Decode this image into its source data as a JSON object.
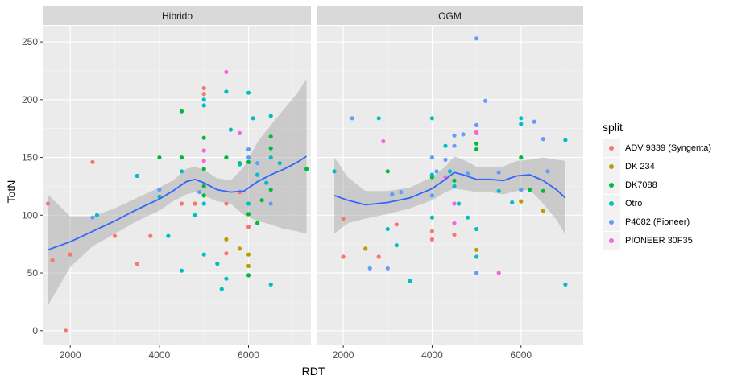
{
  "chart_data": {
    "type": "scatter",
    "xlabel": "RDT",
    "ylabel": "TotN",
    "xlim": [
      1400,
      7400
    ],
    "ylim": [
      -12,
      264
    ],
    "x_ticks": [
      2000,
      4000,
      6000
    ],
    "y_ticks": [
      0,
      50,
      100,
      150,
      200,
      250
    ],
    "grid": true,
    "legend_placement": "right",
    "legend_title": "split",
    "colors": {
      "ADV 9339 (Syngenta)": "#F8766D",
      "DK 234": "#B79F00",
      "DK7088": "#00BA38",
      "Otro": "#00BFC4",
      "P4082 (Pioneer)": "#619CFF",
      "PIONEER 30F35": "#F564E3"
    },
    "panels": [
      {
        "title": "Hibrido",
        "smooth": {
          "x": [
            1500,
            2000,
            2500,
            3000,
            3500,
            4000,
            4300,
            4600,
            4800,
            5000,
            5300,
            5600,
            5900,
            6200,
            6500,
            6800,
            7100,
            7300
          ],
          "y": [
            70,
            77,
            86,
            95,
            105,
            114,
            121,
            129,
            131,
            128,
            122,
            120,
            121,
            129,
            135,
            140,
            146,
            151
          ],
          "lower": [
            22,
            55,
            73,
            84,
            95,
            104,
            112,
            118,
            120,
            117,
            112,
            110,
            100,
            95,
            92,
            88,
            86,
            84
          ],
          "upper": [
            118,
            99,
            99,
            106,
            115,
            124,
            130,
            140,
            142,
            139,
            132,
            130,
            142,
            163,
            178,
            192,
            206,
            218
          ]
        },
        "series": [
          {
            "name": "ADV 9339 (Syngenta)",
            "points": [
              [
                1500,
                110
              ],
              [
                1600,
                61
              ],
              [
                1900,
                0
              ],
              [
                2000,
                66
              ],
              [
                2500,
                146
              ],
              [
                3000,
                82
              ],
              [
                3500,
                58
              ],
              [
                3800,
                82
              ],
              [
                4500,
                110
              ],
              [
                4800,
                110
              ],
              [
                5000,
                210
              ],
              [
                5000,
                205
              ],
              [
                5500,
                110
              ],
              [
                5500,
                67
              ],
              [
                5800,
                120
              ],
              [
                6000,
                90
              ]
            ]
          },
          {
            "name": "DK 234",
            "points": [
              [
                5500,
                79
              ],
              [
                5800,
                71
              ],
              [
                6000,
                66
              ],
              [
                6000,
                56
              ]
            ]
          },
          {
            "name": "DK7088",
            "points": [
              [
                4000,
                150
              ],
              [
                4500,
                190
              ],
              [
                4500,
                150
              ],
              [
                5000,
                167
              ],
              [
                5000,
                140
              ],
              [
                5000,
                125
              ],
              [
                5000,
                117
              ],
              [
                5500,
                150
              ],
              [
                5800,
                145
              ],
              [
                6000,
                146
              ],
              [
                6000,
                101
              ],
              [
                6000,
                48
              ],
              [
                6200,
                93
              ],
              [
                6300,
                113
              ],
              [
                6500,
                168
              ],
              [
                6500,
                158
              ],
              [
                6500,
                122
              ],
              [
                7300,
                140
              ]
            ]
          },
          {
            "name": "Otro",
            "points": [
              [
                2600,
                100
              ],
              [
                3500,
                134
              ],
              [
                4000,
                116
              ],
              [
                4200,
                82
              ],
              [
                4500,
                138
              ],
              [
                4500,
                52
              ],
              [
                4800,
                100
              ],
              [
                5000,
                200
              ],
              [
                5000,
                195
              ],
              [
                5000,
                110
              ],
              [
                5000,
                66
              ],
              [
                5300,
                58
              ],
              [
                5400,
                36
              ],
              [
                5500,
                207
              ],
              [
                5500,
                45
              ],
              [
                5600,
                174
              ],
              [
                5800,
                144
              ],
              [
                6000,
                206
              ],
              [
                6000,
                110
              ],
              [
                6100,
                184
              ],
              [
                6200,
                135
              ],
              [
                6400,
                128
              ],
              [
                6500,
                186
              ],
              [
                6500,
                150
              ],
              [
                6500,
                40
              ],
              [
                6700,
                145
              ]
            ]
          },
          {
            "name": "P4082 (Pioneer)",
            "points": [
              [
                2500,
                98
              ],
              [
                4000,
                122
              ],
              [
                4900,
                120
              ],
              [
                6000,
                157
              ],
              [
                6000,
                150
              ],
              [
                6200,
                145
              ],
              [
                6500,
                110
              ]
            ]
          },
          {
            "name": "PIONEER 30F35",
            "points": [
              [
                5000,
                156
              ],
              [
                5000,
                147
              ],
              [
                5500,
                224
              ],
              [
                5800,
                171
              ]
            ]
          }
        ]
      },
      {
        "title": "OGM",
        "smooth": {
          "x": [
            1800,
            2100,
            2500,
            3000,
            3500,
            4000,
            4300,
            4500,
            4700,
            5000,
            5300,
            5600,
            5900,
            6200,
            6500,
            6800,
            7000
          ],
          "y": [
            117,
            113,
            109,
            111,
            115,
            123,
            131,
            137,
            135,
            131,
            131,
            130,
            134,
            135,
            130,
            122,
            115
          ],
          "lower": [
            84,
            93,
            97,
            101,
            106,
            113,
            120,
            123,
            122,
            120,
            120,
            118,
            121,
            122,
            110,
            96,
            83
          ],
          "upper": [
            150,
            133,
            121,
            121,
            124,
            133,
            142,
            151,
            148,
            142,
            142,
            142,
            147,
            148,
            150,
            148,
            147
          ]
        },
        "series": [
          {
            "name": "ADV 9339 (Syngenta)",
            "points": [
              [
                2000,
                64
              ],
              [
                2000,
                97
              ],
              [
                2800,
                64
              ],
              [
                3200,
                92
              ],
              [
                4000,
                79
              ],
              [
                4000,
                86
              ],
              [
                4500,
                83
              ],
              [
                5000,
                172
              ]
            ]
          },
          {
            "name": "DK 234",
            "points": [
              [
                2500,
                71
              ],
              [
                5000,
                70
              ],
              [
                6000,
                112
              ],
              [
                6500,
                104
              ]
            ]
          },
          {
            "name": "DK7088",
            "points": [
              [
                3000,
                138
              ],
              [
                4000,
                133
              ],
              [
                4500,
                130
              ],
              [
                5000,
                162
              ],
              [
                5000,
                157
              ],
              [
                6000,
                150
              ],
              [
                6000,
                122
              ],
              [
                6200,
                122
              ],
              [
                6500,
                121
              ]
            ]
          },
          {
            "name": "Otro",
            "points": [
              [
                1800,
                138
              ],
              [
                2800,
                184
              ],
              [
                3000,
                88
              ],
              [
                3200,
                74
              ],
              [
                3500,
                43
              ],
              [
                4000,
                184
              ],
              [
                4000,
                135
              ],
              [
                4000,
                98
              ],
              [
                4300,
                160
              ],
              [
                4400,
                138
              ],
              [
                4500,
                125
              ],
              [
                4600,
                110
              ],
              [
                4800,
                98
              ],
              [
                5000,
                88
              ],
              [
                5000,
                64
              ],
              [
                5500,
                121
              ],
              [
                5800,
                111
              ],
              [
                6000,
                184
              ],
              [
                6000,
                179
              ],
              [
                7000,
                165
              ],
              [
                7000,
                40
              ]
            ]
          },
          {
            "name": "P4082 (Pioneer)",
            "points": [
              [
                2200,
                184
              ],
              [
                2600,
                54
              ],
              [
                3000,
                54
              ],
              [
                3100,
                118
              ],
              [
                3300,
                120
              ],
              [
                4000,
                150
              ],
              [
                4000,
                117
              ],
              [
                4100,
                138
              ],
              [
                4300,
                148
              ],
              [
                4500,
                160
              ],
              [
                4500,
                169
              ],
              [
                4700,
                170
              ],
              [
                4800,
                136
              ],
              [
                5000,
                253
              ],
              [
                5000,
                178
              ],
              [
                5000,
                50
              ],
              [
                5200,
                199
              ],
              [
                5500,
                137
              ],
              [
                6000,
                122
              ],
              [
                6300,
                181
              ],
              [
                6500,
                166
              ],
              [
                6600,
                138
              ]
            ]
          },
          {
            "name": "PIONEER 30F35",
            "points": [
              [
                2900,
                164
              ],
              [
                4300,
                133
              ],
              [
                4500,
                110
              ],
              [
                4500,
                93
              ],
              [
                5000,
                171
              ],
              [
                5500,
                50
              ]
            ]
          }
        ]
      }
    ]
  }
}
